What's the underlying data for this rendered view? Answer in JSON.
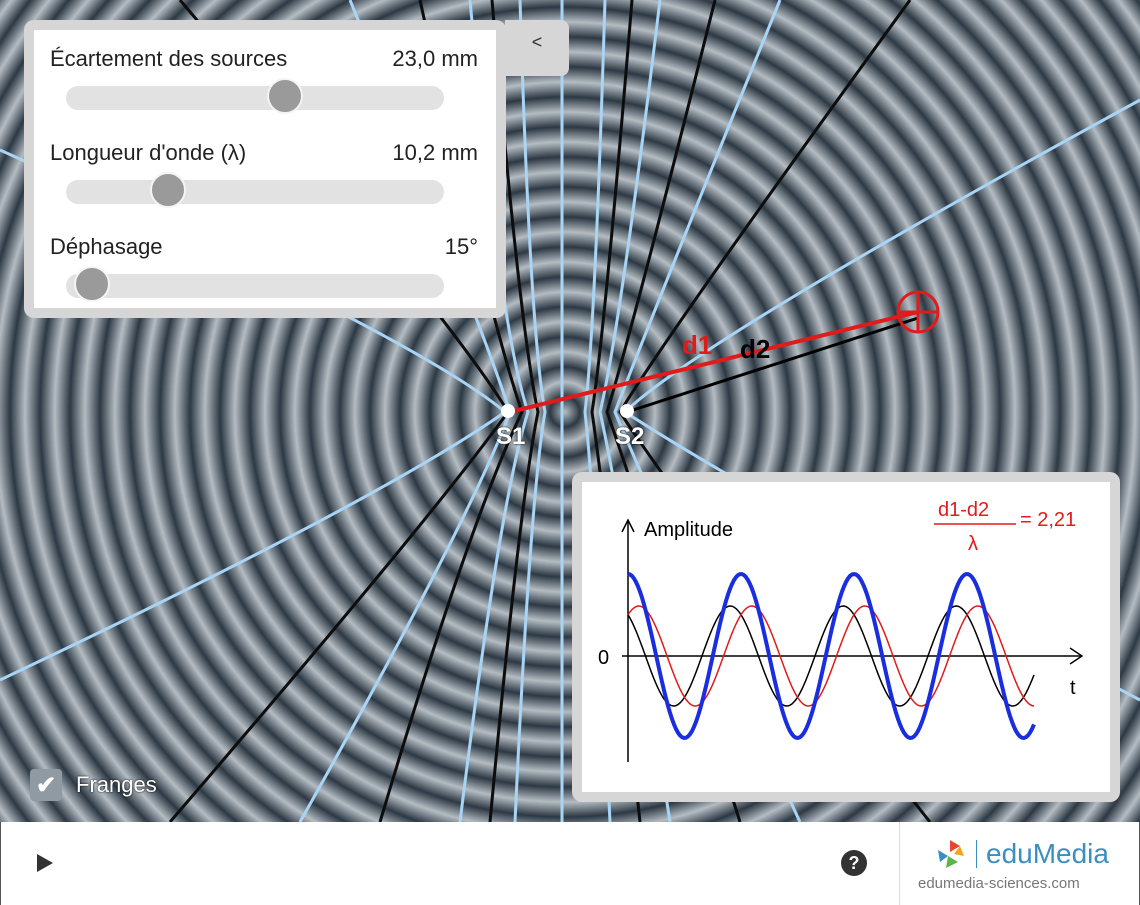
{
  "controls": {
    "source_spacing": {
      "label": "Écartement des sources",
      "value": "23,0 mm",
      "level": 0.58
    },
    "wavelength": {
      "label": "Longueur d'onde (λ)",
      "value": "10,2 mm",
      "level": 0.27
    },
    "phase_shift": {
      "label": "Déphasage",
      "value": "15°",
      "level": 0.07
    }
  },
  "collapse_button": "<",
  "sources": {
    "s1": "S1",
    "s2": "S2"
  },
  "distances": {
    "d1": "d1",
    "d2": "d2"
  },
  "graph": {
    "y_axis_label": "Amplitude",
    "x_axis_label": "t",
    "zero_label": "0",
    "ratio": {
      "numerator": "d1-d2",
      "denominator": "λ",
      "value": "= 2,21"
    }
  },
  "fringes_checkbox": {
    "label": "Franges",
    "checked": true
  },
  "help_button": "?",
  "brand": {
    "name": "eduMedia",
    "site": "edumedia-sciences.com"
  },
  "colors": {
    "accent_red": "#e01b1b",
    "sum_blue": "#1a2ee0",
    "fringe_light": "#a8d4f5",
    "brand_blue": "#3b8fc0"
  },
  "icons": {
    "play": "play-icon",
    "help": "question-icon",
    "check": "check-icon",
    "target": "crosshair-target-icon"
  }
}
